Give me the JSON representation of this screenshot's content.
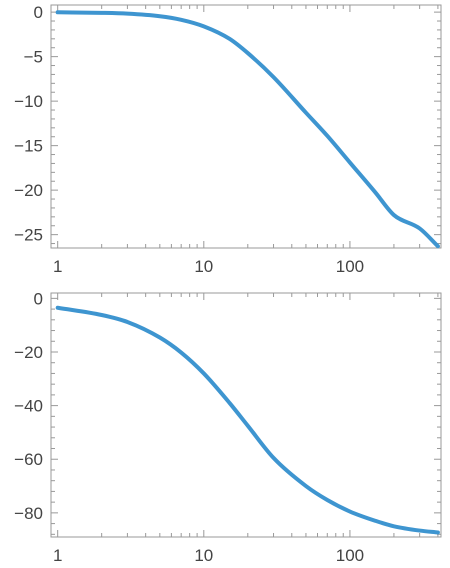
{
  "chart_data": [
    {
      "type": "line",
      "title": "",
      "xlabel": "",
      "ylabel": "",
      "x_scale": "log",
      "xlim": [
        0.9,
        420
      ],
      "ylim": [
        -26.5,
        0.8
      ],
      "x_ticks": [
        1,
        10,
        100
      ],
      "x_tick_labels": [
        "1",
        "10",
        "100"
      ],
      "y_ticks": [
        0,
        -5,
        -10,
        -15,
        -20,
        -25
      ],
      "y_tick_labels": [
        "0",
        "−5",
        "−10",
        "−15",
        "−20",
        "−25"
      ],
      "grid": false,
      "series": [
        {
          "color": "#3e95d0",
          "x": [
            1,
            2,
            3,
            5,
            7,
            10,
            15,
            20,
            30,
            50,
            70,
            100,
            150,
            200,
            300,
            400
          ],
          "y": [
            -0.02,
            -0.08,
            -0.17,
            -0.46,
            -0.86,
            -1.6,
            -3.0,
            -4.6,
            -7.3,
            -11.3,
            -13.9,
            -16.9,
            -20.3,
            -22.8,
            -24.3,
            -26.3
          ]
        }
      ]
    },
    {
      "type": "line",
      "title": "",
      "xlabel": "",
      "ylabel": "",
      "x_scale": "log",
      "xlim": [
        0.9,
        420
      ],
      "ylim": [
        -89,
        2
      ],
      "x_ticks": [
        1,
        10,
        100
      ],
      "x_tick_labels": [
        "1",
        "10",
        "100"
      ],
      "y_ticks": [
        0,
        -20,
        -40,
        -60,
        -80
      ],
      "y_tick_labels": [
        "0",
        "−20",
        "−40",
        "−60",
        "−80"
      ],
      "grid": false,
      "series": [
        {
          "color": "#3e95d0",
          "x": [
            1,
            2,
            3,
            5,
            7,
            10,
            15,
            20,
            30,
            50,
            70,
            100,
            150,
            200,
            300,
            400
          ],
          "y": [
            -3.5,
            -6.2,
            -8.8,
            -14.6,
            -20.2,
            -28.0,
            -39.0,
            -47.5,
            -59.5,
            -70.0,
            -75.2,
            -79.5,
            -83.0,
            -85.0,
            -86.6,
            -87.3
          ]
        }
      ]
    }
  ]
}
